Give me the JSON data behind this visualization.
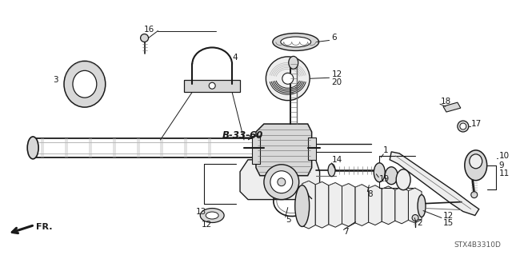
{
  "bg_color": "#ffffff",
  "fig_width": 6.4,
  "fig_height": 3.19,
  "diagram_code": "STX4B3310D",
  "ref_label": "B-33-60",
  "fr_label": "FR."
}
